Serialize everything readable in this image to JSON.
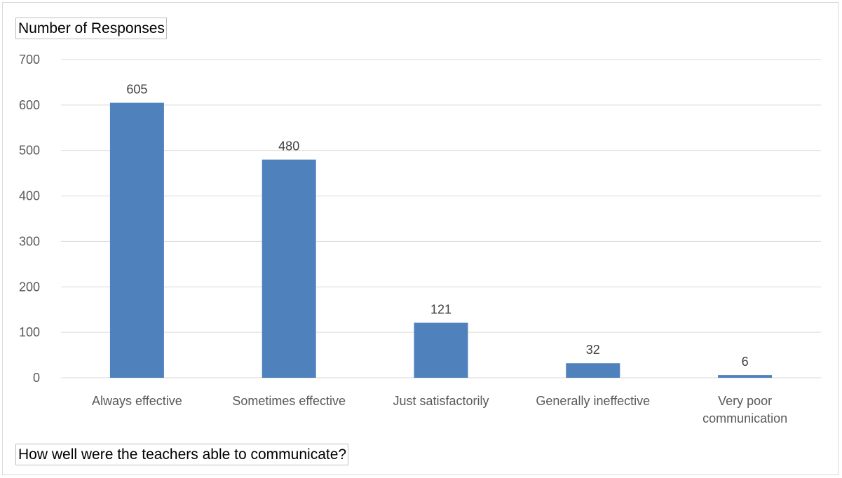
{
  "chart_data": {
    "type": "bar",
    "categories": [
      [
        "Always effective"
      ],
      [
        "Sometimes effective"
      ],
      [
        "Just satisfactorily"
      ],
      [
        "Generally ineffective"
      ],
      [
        "Very poor",
        "communication"
      ]
    ],
    "values": [
      605,
      480,
      121,
      32,
      6
    ],
    "ylabel": "Number of Responses",
    "xlabel": "How well were the teachers able to communicate?",
    "ylim": [
      0,
      700
    ],
    "yticks": [
      0,
      100,
      200,
      300,
      400,
      500,
      600,
      700
    ],
    "grid": true,
    "bar_color": "#4f81bd",
    "data_labels": true
  }
}
